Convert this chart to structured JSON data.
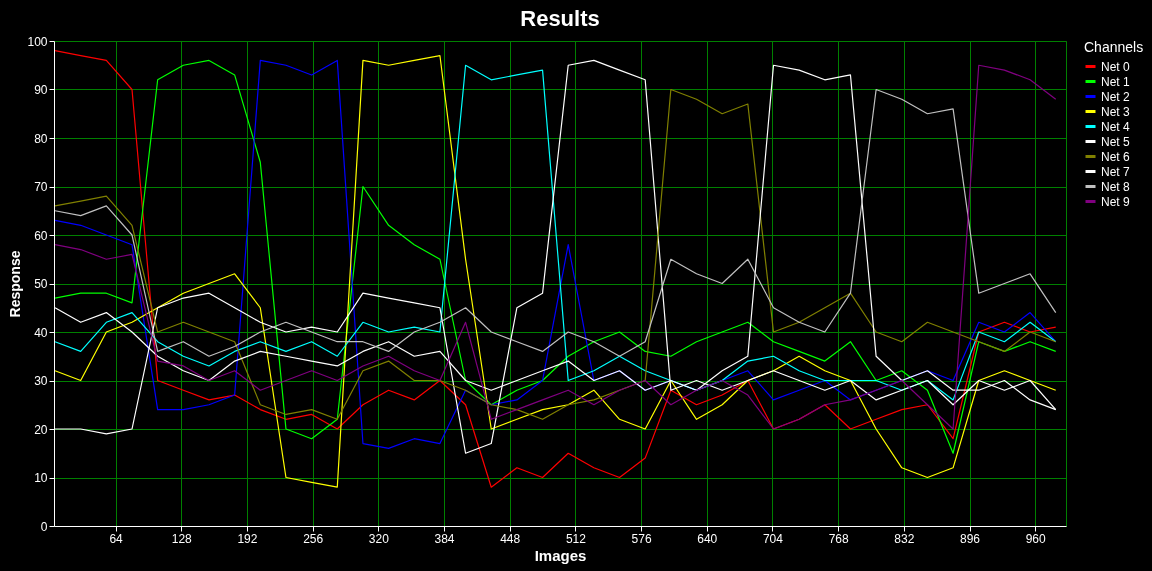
{
  "chart_data": {
    "type": "line",
    "title": "Results",
    "xlabel": "Images",
    "ylabel": "Response",
    "legend_title": "Channels",
    "x": [
      5,
      30,
      55,
      80,
      105,
      130,
      155,
      180,
      205,
      230,
      255,
      280,
      305,
      330,
      355,
      380,
      405,
      430,
      455,
      480,
      505,
      530,
      555,
      580,
      605,
      630,
      655,
      680,
      705,
      730,
      755,
      780,
      805,
      830,
      855,
      880,
      905,
      930,
      955,
      980
    ],
    "series": [
      {
        "name": "Net 0",
        "color": "#ff0000",
        "values": [
          98,
          97,
          96,
          90,
          30,
          28,
          26,
          27,
          24,
          22,
          23,
          20,
          25,
          28,
          26,
          30,
          25,
          8,
          12,
          10,
          15,
          12,
          10,
          14,
          28,
          25,
          27,
          30,
          20,
          22,
          25,
          20,
          22,
          24,
          25,
          18,
          40,
          42,
          40,
          41
        ]
      },
      {
        "name": "Net 1",
        "color": "#00ff00",
        "values": [
          47,
          48,
          48,
          46,
          92,
          95,
          96,
          93,
          75,
          20,
          18,
          22,
          70,
          62,
          58,
          55,
          30,
          25,
          28,
          30,
          35,
          38,
          40,
          36,
          35,
          38,
          40,
          42,
          38,
          36,
          34,
          38,
          30,
          32,
          28,
          15,
          38,
          36,
          38,
          36
        ]
      },
      {
        "name": "Net 2",
        "color": "#0000ff",
        "values": [
          63,
          62,
          60,
          58,
          24,
          24,
          25,
          27,
          96,
          95,
          93,
          96,
          17,
          16,
          18,
          17,
          28,
          25,
          26,
          30,
          58,
          30,
          32,
          28,
          30,
          28,
          30,
          32,
          26,
          28,
          30,
          26,
          28,
          30,
          32,
          30,
          42,
          40,
          44,
          38
        ]
      },
      {
        "name": "Net 3",
        "color": "#ffff00",
        "values": [
          32,
          30,
          40,
          42,
          45,
          48,
          50,
          52,
          45,
          10,
          9,
          8,
          96,
          95,
          96,
          97,
          55,
          20,
          22,
          24,
          25,
          28,
          22,
          20,
          30,
          22,
          25,
          30,
          32,
          35,
          32,
          30,
          20,
          12,
          10,
          12,
          30,
          32,
          30,
          28
        ]
      },
      {
        "name": "Net 4",
        "color": "#00ffff",
        "values": [
          38,
          36,
          42,
          44,
          38,
          35,
          33,
          36,
          38,
          36,
          38,
          35,
          42,
          40,
          41,
          40,
          95,
          92,
          93,
          94,
          30,
          32,
          35,
          32,
          30,
          28,
          30,
          34,
          35,
          32,
          30,
          30,
          30,
          28,
          30,
          26,
          40,
          38,
          42,
          38
        ]
      },
      {
        "name": "Net 5",
        "color": "#ffffff",
        "values": [
          20,
          20,
          19,
          20,
          45,
          47,
          48,
          45,
          42,
          40,
          41,
          40,
          48,
          47,
          46,
          45,
          15,
          17,
          45,
          48,
          95,
          96,
          94,
          92,
          28,
          30,
          28,
          30,
          32,
          30,
          28,
          30,
          26,
          28,
          30,
          25,
          30,
          28,
          30,
          24
        ]
      },
      {
        "name": "Net 6",
        "color": "#808000",
        "values": [
          66,
          67,
          68,
          62,
          40,
          42,
          40,
          38,
          25,
          23,
          24,
          22,
          32,
          34,
          30,
          30,
          28,
          25,
          24,
          22,
          25,
          26,
          28,
          30,
          90,
          88,
          85,
          87,
          40,
          42,
          45,
          48,
          40,
          38,
          42,
          40,
          38,
          36,
          40,
          38
        ]
      },
      {
        "name": "Net 7",
        "color": "#fefefe",
        "values": [
          45,
          42,
          44,
          40,
          35,
          32,
          30,
          34,
          36,
          35,
          34,
          33,
          36,
          38,
          35,
          36,
          30,
          28,
          30,
          32,
          34,
          30,
          32,
          28,
          30,
          28,
          32,
          35,
          95,
          94,
          92,
          93,
          35,
          30,
          32,
          28,
          28,
          30,
          26,
          24
        ]
      },
      {
        "name": "Net 8",
        "color": "#c0c0c0",
        "values": [
          65,
          64,
          66,
          60,
          36,
          38,
          35,
          37,
          40,
          42,
          40,
          38,
          38,
          36,
          40,
          42,
          45,
          40,
          38,
          36,
          40,
          38,
          35,
          38,
          55,
          52,
          50,
          55,
          45,
          42,
          40,
          48,
          90,
          88,
          85,
          86,
          48,
          50,
          52,
          44
        ]
      },
      {
        "name": "Net 9",
        "color": "#800080",
        "values": [
          58,
          57,
          55,
          56,
          34,
          33,
          30,
          32,
          28,
          30,
          32,
          30,
          33,
          35,
          32,
          30,
          42,
          22,
          24,
          26,
          28,
          25,
          28,
          30,
          25,
          28,
          30,
          27,
          20,
          22,
          25,
          26,
          28,
          30,
          25,
          20,
          95,
          94,
          92,
          88
        ]
      }
    ],
    "xlim": [
      4,
      990
    ],
    "xticks": [
      64,
      128,
      192,
      256,
      320,
      384,
      448,
      512,
      576,
      640,
      704,
      768,
      832,
      896,
      960
    ],
    "ylim": [
      0,
      100
    ],
    "yticks": [
      0,
      10,
      20,
      30,
      40,
      50,
      60,
      70,
      80,
      90,
      100
    ],
    "grid": true,
    "legend": "right",
    "marker": "none",
    "line_style": "solid"
  }
}
